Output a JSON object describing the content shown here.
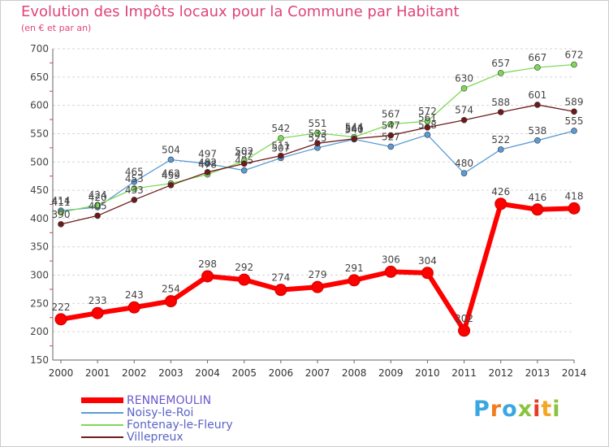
{
  "chart_data": {
    "type": "line",
    "title": "Evolution des Impôts locaux pour la Commune par Habitant",
    "subtitle": "(en € et par an)",
    "xlabel": "",
    "ylabel": "",
    "x": [
      "2000",
      "2001",
      "2002",
      "2003",
      "2004",
      "2005",
      "2006",
      "2007",
      "2008",
      "2009",
      "2010",
      "2011",
      "2012",
      "2013",
      "2014"
    ],
    "yticks": [
      150,
      200,
      250,
      300,
      350,
      400,
      450,
      500,
      550,
      600,
      650,
      700
    ],
    "ylim": [
      150,
      700
    ],
    "grid": true,
    "legend_position": "bottom-left",
    "series": [
      {
        "name": "Noisy-le-Roi",
        "color": "#5b9bd5",
        "values": [
          414,
          420,
          465,
          504,
          497,
          485,
          507,
          525,
          540,
          527,
          548,
          480,
          522,
          538,
          555
        ]
      },
      {
        "name": "Fontenay-le-Fleury",
        "color": "#7ed957",
        "values": [
          411,
          424,
          453,
          462,
          478,
          502,
          542,
          551,
          544,
          567,
          572,
          630,
          657,
          667,
          672
        ]
      },
      {
        "name": "Villepreux",
        "color": "#6e1a1a",
        "values": [
          390,
          405,
          433,
          459,
          482,
          497,
          511,
          533,
          541,
          547,
          561,
          574,
          588,
          601,
          589
        ]
      },
      {
        "name": "RENNEMOULIN",
        "color": "#ff0000",
        "values": [
          222,
          233,
          243,
          254,
          298,
          292,
          274,
          279,
          291,
          306,
          304,
          202,
          426,
          416,
          418
        ]
      }
    ],
    "legend": [
      {
        "name": "RENNEMOULIN",
        "color": "#ff0000"
      },
      {
        "name": "Noisy-le-Roi",
        "color": "#5b9bd5"
      },
      {
        "name": "Fontenay-le-Fleury",
        "color": "#7ed957"
      },
      {
        "name": "Villepreux",
        "color": "#6e1a1a"
      }
    ]
  },
  "logo": {
    "letters": [
      "P",
      "r",
      "o",
      "x",
      "i",
      "t",
      "i"
    ],
    "colors": [
      "#3aa7e0",
      "#f07c1c",
      "#3aa7e0",
      "#8ac43f",
      "#e23c2a",
      "#f5a623",
      "#8ac43f"
    ]
  }
}
